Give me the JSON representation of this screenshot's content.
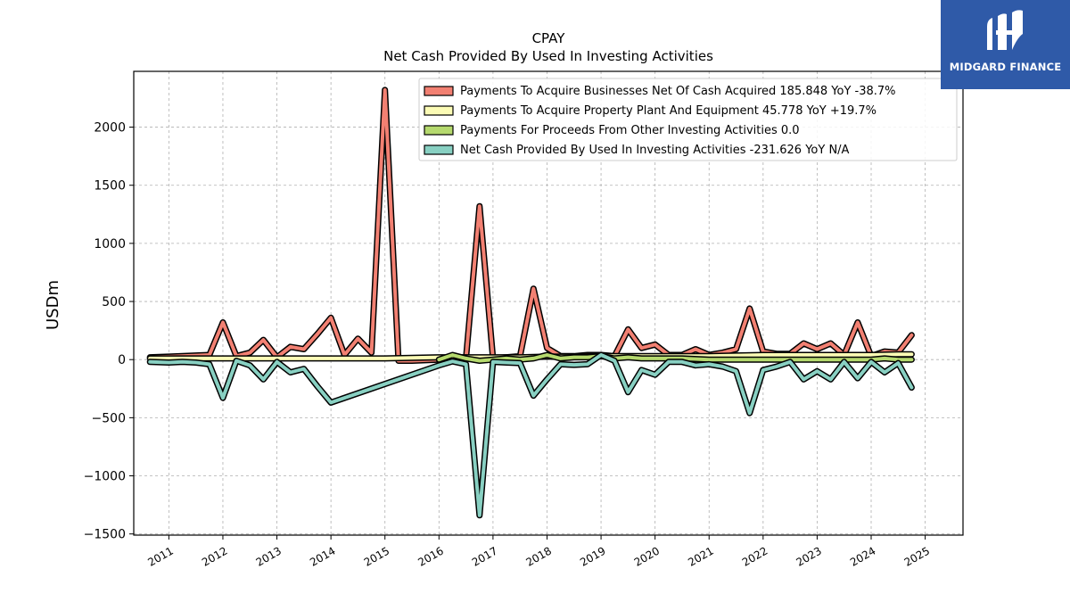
{
  "logo": {
    "text": "MIDGARD FINANCE",
    "bg": "#2f5aa8"
  },
  "chart_data": {
    "type": "line",
    "title": "CPAY",
    "subtitle": "Net Cash Provided By Used In Investing Activities",
    "ylabel": "USDm",
    "xlabel": "",
    "ylim": [
      -1510,
      2480
    ],
    "xlim": [
      2010.35,
      2025.7
    ],
    "yticks": [
      -1500,
      -1000,
      -500,
      0,
      500,
      1000,
      1500,
      2000
    ],
    "xticks": [
      2011,
      2012,
      2013,
      2014,
      2015,
      2016,
      2017,
      2018,
      2019,
      2020,
      2021,
      2022,
      2023,
      2024,
      2025
    ],
    "grid": true,
    "legend_position": "top-right",
    "series": [
      {
        "name": "Payments To Acquire Businesses Net Of Cash Acquired",
        "legend": "Payments To Acquire Businesses Net Of Cash Acquired  185.848 YoY -38.7%",
        "color": "#f28072",
        "points": [
          [
            2010.65,
            20
          ],
          [
            2011.0,
            25
          ],
          [
            2011.25,
            30
          ],
          [
            2011.5,
            35
          ],
          [
            2011.75,
            40
          ],
          [
            2012.0,
            320
          ],
          [
            2012.25,
            30
          ],
          [
            2012.5,
            60
          ],
          [
            2012.75,
            170
          ],
          [
            2013.0,
            20
          ],
          [
            2013.25,
            110
          ],
          [
            2013.5,
            90
          ],
          [
            2013.75,
            220
          ],
          [
            2014.0,
            360
          ],
          [
            2014.25,
            40
          ],
          [
            2014.5,
            180
          ],
          [
            2014.75,
            60
          ],
          [
            2015.0,
            2320
          ],
          [
            2015.25,
            -10
          ],
          [
            2015.5,
            -10
          ],
          [
            2015.75,
            -5
          ],
          [
            2016.0,
            0
          ],
          [
            2016.25,
            5
          ],
          [
            2016.5,
            10
          ],
          [
            2016.75,
            1320
          ],
          [
            2017.0,
            10
          ],
          [
            2017.25,
            20
          ],
          [
            2017.5,
            30
          ],
          [
            2017.75,
            610
          ],
          [
            2018.0,
            100
          ],
          [
            2018.25,
            30
          ],
          [
            2018.5,
            30
          ],
          [
            2018.75,
            40
          ],
          [
            2019.0,
            40
          ],
          [
            2019.25,
            30
          ],
          [
            2019.5,
            260
          ],
          [
            2019.75,
            100
          ],
          [
            2020.0,
            130
          ],
          [
            2020.25,
            40
          ],
          [
            2020.5,
            40
          ],
          [
            2020.75,
            90
          ],
          [
            2021.0,
            40
          ],
          [
            2021.25,
            60
          ],
          [
            2021.5,
            90
          ],
          [
            2021.75,
            440
          ],
          [
            2022.0,
            70
          ],
          [
            2022.25,
            50
          ],
          [
            2022.5,
            50
          ],
          [
            2022.75,
            140
          ],
          [
            2023.0,
            90
          ],
          [
            2023.25,
            140
          ],
          [
            2023.5,
            40
          ],
          [
            2023.75,
            320
          ],
          [
            2024.0,
            30
          ],
          [
            2024.25,
            70
          ],
          [
            2024.5,
            60
          ],
          [
            2024.75,
            210
          ]
        ]
      },
      {
        "name": "Payments To Acquire Property Plant And Equipment",
        "legend": "Payments To Acquire Property Plant And Equipment  45.778 YoY +19.7%",
        "color": "#fbfbb5",
        "points": [
          [
            2010.65,
            10
          ],
          [
            2011.0,
            10
          ],
          [
            2011.5,
            10
          ],
          [
            2012.0,
            10
          ],
          [
            2012.5,
            10
          ],
          [
            2013.0,
            10
          ],
          [
            2013.5,
            10
          ],
          [
            2014.0,
            10
          ],
          [
            2014.5,
            10
          ],
          [
            2015.0,
            10
          ],
          [
            2015.5,
            15
          ],
          [
            2016.0,
            20
          ],
          [
            2016.5,
            20
          ],
          [
            2017.0,
            20
          ],
          [
            2017.5,
            20
          ],
          [
            2018.0,
            25
          ],
          [
            2018.5,
            25
          ],
          [
            2019.0,
            30
          ],
          [
            2019.5,
            30
          ],
          [
            2020.0,
            30
          ],
          [
            2020.5,
            30
          ],
          [
            2021.0,
            30
          ],
          [
            2021.5,
            35
          ],
          [
            2022.0,
            40
          ],
          [
            2022.5,
            40
          ],
          [
            2023.0,
            40
          ],
          [
            2023.5,
            40
          ],
          [
            2024.0,
            40
          ],
          [
            2024.5,
            45
          ],
          [
            2024.75,
            46
          ]
        ]
      },
      {
        "name": "Payments For Proceeds From Other Investing Activities",
        "legend": "Payments For Proceeds From Other Investing Activities  0.0",
        "color": "#b5d96e",
        "points": [
          [
            2016.0,
            0
          ],
          [
            2016.25,
            40
          ],
          [
            2016.5,
            10
          ],
          [
            2016.75,
            -10
          ],
          [
            2017.0,
            0
          ],
          [
            2017.25,
            10
          ],
          [
            2017.5,
            0
          ],
          [
            2017.75,
            10
          ],
          [
            2018.0,
            40
          ],
          [
            2018.25,
            10
          ],
          [
            2018.5,
            20
          ],
          [
            2018.75,
            20
          ],
          [
            2019.0,
            30
          ],
          [
            2019.25,
            10
          ],
          [
            2019.5,
            20
          ],
          [
            2019.75,
            10
          ],
          [
            2020.0,
            10
          ],
          [
            2020.5,
            10
          ],
          [
            2021.0,
            0
          ],
          [
            2021.5,
            0
          ],
          [
            2022.0,
            0
          ],
          [
            2022.5,
            0
          ],
          [
            2023.0,
            0
          ],
          [
            2023.5,
            0
          ],
          [
            2024.0,
            0
          ],
          [
            2024.25,
            10
          ],
          [
            2024.5,
            0
          ],
          [
            2024.75,
            0
          ]
        ]
      },
      {
        "name": "Net Cash Provided By Used In Investing Activities",
        "legend": "Net Cash Provided By Used In Investing Activities  -231.626 YoY N/A",
        "color": "#88d0c2",
        "points": [
          [
            2010.65,
            -20
          ],
          [
            2011.0,
            -25
          ],
          [
            2011.25,
            -20
          ],
          [
            2011.5,
            -25
          ],
          [
            2011.75,
            -40
          ],
          [
            2012.0,
            -330
          ],
          [
            2012.25,
            -10
          ],
          [
            2012.5,
            -50
          ],
          [
            2012.75,
            -170
          ],
          [
            2013.0,
            -20
          ],
          [
            2013.25,
            -110
          ],
          [
            2013.5,
            -80
          ],
          [
            2013.75,
            -230
          ],
          [
            2014.0,
            -370
          ],
          [
            2016.0,
            -50
          ],
          [
            2016.25,
            -15
          ],
          [
            2016.5,
            -40
          ],
          [
            2016.75,
            -1340
          ],
          [
            2017.0,
            -20
          ],
          [
            2017.25,
            -25
          ],
          [
            2017.5,
            -30
          ],
          [
            2017.75,
            -310
          ],
          [
            2018.0,
            -170
          ],
          [
            2018.25,
            -40
          ],
          [
            2018.5,
            -45
          ],
          [
            2018.75,
            -40
          ],
          [
            2019.0,
            40
          ],
          [
            2019.25,
            -10
          ],
          [
            2019.5,
            -280
          ],
          [
            2019.75,
            -90
          ],
          [
            2020.0,
            -130
          ],
          [
            2020.25,
            -20
          ],
          [
            2020.5,
            -20
          ],
          [
            2020.75,
            -50
          ],
          [
            2021.0,
            -40
          ],
          [
            2021.25,
            -60
          ],
          [
            2021.5,
            -100
          ],
          [
            2021.75,
            -460
          ],
          [
            2022.0,
            -90
          ],
          [
            2022.25,
            -60
          ],
          [
            2022.5,
            -20
          ],
          [
            2022.75,
            -170
          ],
          [
            2023.0,
            -100
          ],
          [
            2023.25,
            -170
          ],
          [
            2023.5,
            -20
          ],
          [
            2023.75,
            -160
          ],
          [
            2024.0,
            -20
          ],
          [
            2024.25,
            -110
          ],
          [
            2024.5,
            -30
          ],
          [
            2024.75,
            -240
          ]
        ]
      }
    ]
  }
}
